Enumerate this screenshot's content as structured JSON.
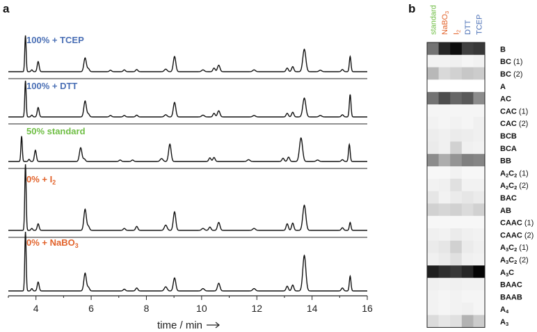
{
  "panel_a_label": "a",
  "panel_b_label": "b",
  "colors": {
    "blue": "#4a6fb5",
    "green": "#6fbe44",
    "orange": "#e2622a",
    "line": "#111111",
    "axis": "#222222"
  },
  "chart_data": [
    {
      "type": "line",
      "panel": "a",
      "xlabel": "time / min",
      "xlim": [
        3.0,
        16.0
      ],
      "xticks": [
        4,
        6,
        8,
        10,
        12,
        14,
        16
      ],
      "series": [
        {
          "name": "100% + TCEP",
          "name_parts": [
            {
              "t": "100% + TCEP"
            }
          ],
          "color": "#4a6fb5",
          "peaks": [
            [
              3.62,
              1.0,
              0.025
            ],
            [
              3.85,
              0.05,
              0.03
            ],
            [
              4.08,
              0.28,
              0.035
            ],
            [
              5.78,
              0.38,
              0.045
            ],
            [
              5.9,
              0.08,
              0.04
            ],
            [
              6.7,
              0.04,
              0.04
            ],
            [
              7.2,
              0.05,
              0.04
            ],
            [
              7.65,
              0.06,
              0.04
            ],
            [
              8.7,
              0.07,
              0.05
            ],
            [
              9.02,
              0.42,
              0.045
            ],
            [
              10.05,
              0.05,
              0.05
            ],
            [
              10.45,
              0.1,
              0.04
            ],
            [
              10.62,
              0.18,
              0.045
            ],
            [
              11.9,
              0.05,
              0.05
            ],
            [
              13.1,
              0.1,
              0.04
            ],
            [
              13.3,
              0.14,
              0.04
            ],
            [
              13.72,
              0.62,
              0.055
            ],
            [
              14.3,
              0.04,
              0.05
            ],
            [
              15.1,
              0.06,
              0.04
            ],
            [
              15.38,
              0.42,
              0.03
            ]
          ]
        },
        {
          "name": "100% + DTT",
          "name_parts": [
            {
              "t": "100% + DTT"
            }
          ],
          "color": "#4a6fb5",
          "peaks": [
            [
              3.62,
              1.0,
              0.025
            ],
            [
              3.85,
              0.05,
              0.03
            ],
            [
              4.08,
              0.26,
              0.035
            ],
            [
              5.78,
              0.44,
              0.045
            ],
            [
              5.9,
              0.08,
              0.04
            ],
            [
              6.7,
              0.04,
              0.04
            ],
            [
              7.2,
              0.04,
              0.04
            ],
            [
              7.65,
              0.05,
              0.04
            ],
            [
              8.7,
              0.06,
              0.05
            ],
            [
              9.02,
              0.4,
              0.045
            ],
            [
              10.05,
              0.05,
              0.05
            ],
            [
              10.45,
              0.1,
              0.04
            ],
            [
              10.62,
              0.17,
              0.045
            ],
            [
              11.9,
              0.04,
              0.05
            ],
            [
              13.1,
              0.1,
              0.04
            ],
            [
              13.3,
              0.13,
              0.04
            ],
            [
              13.72,
              0.52,
              0.055
            ],
            [
              14.3,
              0.04,
              0.05
            ],
            [
              15.1,
              0.06,
              0.04
            ],
            [
              15.38,
              0.62,
              0.03
            ]
          ]
        },
        {
          "name": "50% standard",
          "name_parts": [
            {
              "t": "50% standard"
            }
          ],
          "color": "#6fbe44",
          "peaks": [
            [
              3.48,
              0.7,
              0.025
            ],
            [
              3.75,
              0.06,
              0.03
            ],
            [
              3.98,
              0.31,
              0.035
            ],
            [
              5.62,
              0.38,
              0.045
            ],
            [
              5.75,
              0.07,
              0.04
            ],
            [
              7.05,
              0.04,
              0.04
            ],
            [
              7.5,
              0.04,
              0.04
            ],
            [
              8.55,
              0.08,
              0.05
            ],
            [
              8.85,
              0.48,
              0.045
            ],
            [
              10.3,
              0.1,
              0.04
            ],
            [
              10.45,
              0.11,
              0.04
            ],
            [
              11.7,
              0.05,
              0.05
            ],
            [
              12.95,
              0.09,
              0.04
            ],
            [
              13.15,
              0.12,
              0.04
            ],
            [
              13.6,
              0.65,
              0.055
            ],
            [
              14.2,
              0.04,
              0.05
            ],
            [
              15.1,
              0.05,
              0.04
            ],
            [
              15.35,
              0.47,
              0.03
            ]
          ]
        },
        {
          "name": "0% + I2",
          "name_parts": [
            {
              "t": "0% + I"
            },
            {
              "t": "2",
              "sub": true
            }
          ],
          "color": "#e2622a",
          "peaks": [
            [
              3.62,
              1.0,
              0.025
            ],
            [
              3.85,
              0.03,
              0.03
            ],
            [
              4.08,
              0.1,
              0.035
            ],
            [
              5.78,
              0.32,
              0.045
            ],
            [
              5.9,
              0.06,
              0.04
            ],
            [
              7.2,
              0.03,
              0.04
            ],
            [
              7.65,
              0.06,
              0.04
            ],
            [
              8.7,
              0.08,
              0.05
            ],
            [
              9.02,
              0.28,
              0.045
            ],
            [
              10.05,
              0.03,
              0.05
            ],
            [
              10.3,
              0.05,
              0.04
            ],
            [
              10.62,
              0.12,
              0.045
            ],
            [
              11.9,
              0.03,
              0.05
            ],
            [
              13.1,
              0.1,
              0.04
            ],
            [
              13.3,
              0.11,
              0.04
            ],
            [
              13.72,
              0.38,
              0.055
            ],
            [
              15.1,
              0.04,
              0.04
            ],
            [
              15.38,
              0.12,
              0.03
            ]
          ]
        },
        {
          "name": "0% + NaBO3",
          "name_parts": [
            {
              "t": "0% + NaBO"
            },
            {
              "t": "3",
              "sub": true
            }
          ],
          "color": "#e2622a",
          "peaks": [
            [
              3.62,
              1.0,
              0.025
            ],
            [
              3.85,
              0.04,
              0.03
            ],
            [
              4.08,
              0.15,
              0.035
            ],
            [
              5.78,
              0.3,
              0.045
            ],
            [
              5.9,
              0.06,
              0.04
            ],
            [
              7.2,
              0.03,
              0.04
            ],
            [
              7.65,
              0.05,
              0.04
            ],
            [
              8.7,
              0.07,
              0.05
            ],
            [
              9.02,
              0.22,
              0.045
            ],
            [
              10.05,
              0.04,
              0.05
            ],
            [
              10.62,
              0.13,
              0.045
            ],
            [
              11.9,
              0.04,
              0.05
            ],
            [
              13.1,
              0.08,
              0.04
            ],
            [
              13.3,
              0.1,
              0.04
            ],
            [
              13.72,
              0.6,
              0.055
            ],
            [
              15.1,
              0.05,
              0.04
            ],
            [
              15.38,
              0.25,
              0.03
            ]
          ]
        }
      ]
    },
    {
      "type": "heatmap",
      "panel": "b",
      "columns": [
        {
          "label": "standard",
          "parts": [
            {
              "t": "standard"
            }
          ],
          "color": "#6fbe44"
        },
        {
          "label": "NaBO3",
          "parts": [
            {
              "t": "NaBO"
            },
            {
              "t": "3",
              "sub": true
            }
          ],
          "color": "#e2622a"
        },
        {
          "label": "I2",
          "parts": [
            {
              "t": "I"
            },
            {
              "t": "2",
              "sub": true
            }
          ],
          "color": "#e2622a"
        },
        {
          "label": "DTT",
          "parts": [
            {
              "t": "DTT"
            }
          ],
          "color": "#4a6fb5"
        },
        {
          "label": "TCEP",
          "parts": [
            {
              "t": "TCEP"
            }
          ],
          "color": "#4a6fb5"
        }
      ],
      "rows": [
        {
          "label": "B",
          "parts": [
            {
              "t": "B",
              "b": true
            }
          ],
          "values": [
            0.55,
            0.85,
            0.95,
            0.75,
            0.78
          ]
        },
        {
          "label": "BC (1)",
          "parts": [
            {
              "t": "BC",
              "b": true
            },
            {
              "t": " (1)"
            }
          ],
          "values": [
            0.05,
            0.05,
            0.06,
            0.04,
            0.05
          ]
        },
        {
          "label": "BC (2)",
          "parts": [
            {
              "t": "BC",
              "b": true
            },
            {
              "t": " (2)"
            }
          ],
          "values": [
            0.28,
            0.15,
            0.18,
            0.22,
            0.2
          ]
        },
        {
          "label": "A",
          "parts": [
            {
              "t": "A",
              "b": true
            }
          ],
          "values": [
            0.0,
            0.0,
            0.0,
            0.0,
            0.0
          ]
        },
        {
          "label": "AC",
          "parts": [
            {
              "t": "AC",
              "b": true
            }
          ],
          "values": [
            0.55,
            0.7,
            0.6,
            0.65,
            0.45
          ]
        },
        {
          "label": "CAC (1)",
          "parts": [
            {
              "t": "CAC",
              "b": true
            },
            {
              "t": " (1)"
            }
          ],
          "values": [
            0.04,
            0.04,
            0.04,
            0.04,
            0.04
          ]
        },
        {
          "label": "CAC (2)",
          "parts": [
            {
              "t": "CAC",
              "b": true
            },
            {
              "t": " (2)"
            }
          ],
          "values": [
            0.05,
            0.04,
            0.05,
            0.04,
            0.06
          ]
        },
        {
          "label": "BCB",
          "parts": [
            {
              "t": "BCB",
              "b": true
            }
          ],
          "values": [
            0.07,
            0.06,
            0.08,
            0.07,
            0.06
          ]
        },
        {
          "label": "BCA",
          "parts": [
            {
              "t": "BCA",
              "b": true
            }
          ],
          "values": [
            0.08,
            0.06,
            0.18,
            0.06,
            0.05
          ]
        },
        {
          "label": "BB",
          "parts": [
            {
              "t": "BB",
              "b": true
            }
          ],
          "values": [
            0.45,
            0.32,
            0.42,
            0.5,
            0.48
          ]
        },
        {
          "label": "A2C2 (1)",
          "parts": [
            {
              "t": "A",
              "b": true
            },
            {
              "t": "2",
              "sub": true,
              "b": true
            },
            {
              "t": "C",
              "b": true
            },
            {
              "t": "2",
              "sub": true,
              "b": true
            },
            {
              "t": " (1)"
            }
          ],
          "values": [
            0.03,
            0.03,
            0.05,
            0.03,
            0.03
          ]
        },
        {
          "label": "A2C2 (2)",
          "parts": [
            {
              "t": "A",
              "b": true
            },
            {
              "t": "2",
              "sub": true,
              "b": true
            },
            {
              "t": "C",
              "b": true
            },
            {
              "t": "2",
              "sub": true,
              "b": true
            },
            {
              "t": " (2)"
            }
          ],
          "values": [
            0.05,
            0.06,
            0.12,
            0.05,
            0.05
          ]
        },
        {
          "label": "BAC",
          "parts": [
            {
              "t": "BAC",
              "b": true
            }
          ],
          "values": [
            0.1,
            0.05,
            0.08,
            0.1,
            0.08
          ]
        },
        {
          "label": "AB",
          "parts": [
            {
              "t": "AB",
              "b": true
            }
          ],
          "values": [
            0.18,
            0.16,
            0.18,
            0.14,
            0.18
          ]
        },
        {
          "label": "CAAC (1)",
          "parts": [
            {
              "t": "CAAC",
              "b": true
            },
            {
              "t": " (1)"
            }
          ],
          "values": [
            0.03,
            0.03,
            0.03,
            0.03,
            0.03
          ]
        },
        {
          "label": "CAAC (2)",
          "parts": [
            {
              "t": "CAAC",
              "b": true
            },
            {
              "t": " (2)"
            }
          ],
          "values": [
            0.06,
            0.05,
            0.08,
            0.06,
            0.05
          ]
        },
        {
          "label": "A3C2 (1)",
          "parts": [
            {
              "t": "A",
              "b": true
            },
            {
              "t": "3",
              "sub": true,
              "b": true
            },
            {
              "t": "C",
              "b": true
            },
            {
              "t": "2",
              "sub": true,
              "b": true
            },
            {
              "t": " (1)"
            }
          ],
          "values": [
            0.08,
            0.1,
            0.18,
            0.08,
            0.06
          ]
        },
        {
          "label": "A3C2 (2)",
          "parts": [
            {
              "t": "A",
              "b": true
            },
            {
              "t": "3",
              "sub": true,
              "b": true
            },
            {
              "t": "C",
              "b": true
            },
            {
              "t": "2",
              "sub": true,
              "b": true
            },
            {
              "t": " (2)"
            }
          ],
          "values": [
            0.06,
            0.08,
            0.12,
            0.06,
            0.05
          ]
        },
        {
          "label": "A3C",
          "parts": [
            {
              "t": "A",
              "b": true
            },
            {
              "t": "3",
              "sub": true,
              "b": true
            },
            {
              "t": "C",
              "b": true
            }
          ],
          "values": [
            0.88,
            0.82,
            0.78,
            0.85,
            0.98
          ]
        },
        {
          "label": "BAAC",
          "parts": [
            {
              "t": "BAAC",
              "b": true
            }
          ],
          "values": [
            0.06,
            0.05,
            0.06,
            0.05,
            0.05
          ]
        },
        {
          "label": "BAAB",
          "parts": [
            {
              "t": "BAAB",
              "b": true
            }
          ],
          "values": [
            0.05,
            0.04,
            0.05,
            0.04,
            0.04
          ]
        },
        {
          "label": "A4",
          "parts": [
            {
              "t": "A",
              "b": true
            },
            {
              "t": "4",
              "sub": true,
              "b": true
            }
          ],
          "values": [
            0.05,
            0.04,
            0.05,
            0.06,
            0.04
          ]
        },
        {
          "label": "A3",
          "parts": [
            {
              "t": "A",
              "b": true
            },
            {
              "t": "3",
              "sub": true,
              "b": true
            }
          ],
          "values": [
            0.14,
            0.1,
            0.12,
            0.3,
            0.2
          ]
        }
      ]
    }
  ]
}
